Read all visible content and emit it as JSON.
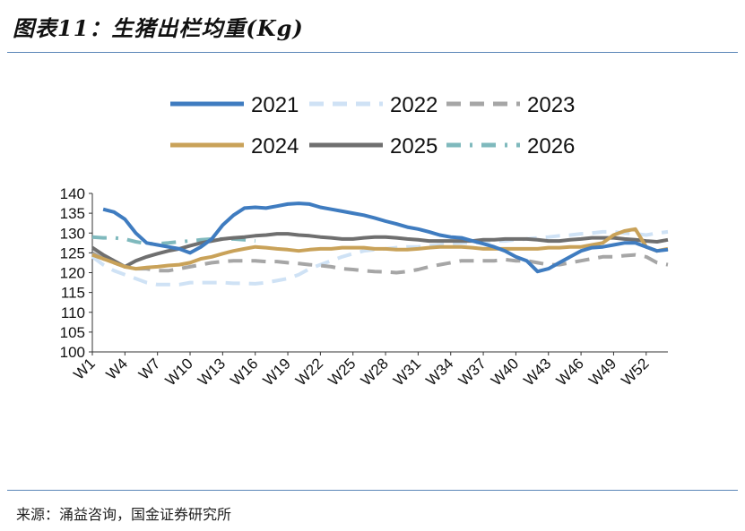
{
  "title": "图表11：生猪出栏均重(Kg)",
  "source": "来源：涌益咨询，国金证券研究所",
  "chart_data": {
    "type": "line",
    "title": "图表11：生猪出栏均重(Kg)",
    "xlabel": "",
    "ylabel": "",
    "ylim": [
      100,
      140
    ],
    "yticks": [
      100,
      105,
      110,
      115,
      120,
      125,
      130,
      135,
      140
    ],
    "legend_position": "top",
    "x_tick_labels": [
      "W1",
      "W4",
      "W7",
      "W10",
      "W13",
      "W16",
      "W19",
      "W22",
      "W25",
      "W28",
      "W31",
      "W34",
      "W37",
      "W40",
      "W43",
      "W46",
      "W49",
      "W52"
    ],
    "x_tick_weeks": [
      1,
      4,
      7,
      10,
      13,
      16,
      19,
      22,
      25,
      28,
      31,
      34,
      37,
      40,
      43,
      46,
      49,
      52
    ],
    "series": [
      {
        "name": "2021",
        "color": "#3f7cc0",
        "style": "solid",
        "x": [
          2,
          3,
          4,
          5,
          6,
          7,
          8,
          9,
          10,
          11,
          12,
          13,
          14,
          15,
          16,
          17,
          18,
          19,
          20,
          21,
          22,
          23,
          24,
          25,
          26,
          27,
          28,
          29,
          30,
          31,
          32,
          33,
          34,
          35,
          36,
          37,
          38,
          39,
          40,
          41,
          42,
          43,
          44,
          45,
          46,
          47,
          48,
          49,
          50,
          51,
          52,
          53,
          54
        ],
        "values": [
          136.0,
          135.3,
          133.5,
          130.0,
          127.5,
          127.0,
          126.5,
          126.0,
          125.0,
          126.5,
          128.5,
          132.0,
          134.5,
          136.3,
          136.5,
          136.3,
          136.8,
          137.3,
          137.5,
          137.3,
          136.5,
          136.0,
          135.5,
          135.0,
          134.5,
          133.8,
          133.0,
          132.3,
          131.5,
          131.0,
          130.3,
          129.5,
          129.0,
          128.8,
          128.0,
          127.3,
          126.5,
          125.5,
          124.0,
          123.0,
          120.3,
          121.0,
          122.5,
          124.0,
          125.5,
          126.3,
          126.5,
          127.0,
          127.5,
          127.5,
          126.5,
          125.5,
          125.8
        ]
      },
      {
        "name": "2022",
        "color": "#cfe2f5",
        "style": "dash",
        "x": [
          1,
          2,
          3,
          4,
          5,
          6,
          7,
          8,
          9,
          10,
          11,
          12,
          13,
          14,
          15,
          16,
          17,
          18,
          19,
          20,
          21,
          22,
          23,
          24,
          25,
          26,
          27,
          28,
          29,
          30,
          31,
          32,
          33,
          34,
          35,
          36,
          37,
          38,
          39,
          40,
          41,
          42,
          43,
          44,
          45,
          46,
          47,
          48,
          49,
          50,
          51,
          52,
          53,
          54
        ],
        "values": [
          124.0,
          122.0,
          120.5,
          119.5,
          118.5,
          117.5,
          117.0,
          117.0,
          117.0,
          117.5,
          117.5,
          117.5,
          117.5,
          117.3,
          117.3,
          117.2,
          117.5,
          118.0,
          118.5,
          119.5,
          121.0,
          122.0,
          123.0,
          124.0,
          124.8,
          125.5,
          125.8,
          126.0,
          126.3,
          126.5,
          126.5,
          126.8,
          127.0,
          127.3,
          127.5,
          127.5,
          127.8,
          128.0,
          128.0,
          128.3,
          128.5,
          128.8,
          129.0,
          129.3,
          129.5,
          129.8,
          130.0,
          130.3,
          130.3,
          130.0,
          129.8,
          129.5,
          130.0,
          130.3
        ]
      },
      {
        "name": "2023",
        "color": "#a6a6a6",
        "style": "dash",
        "x": [
          1,
          2,
          3,
          4,
          5,
          6,
          7,
          8,
          9,
          10,
          11,
          12,
          13,
          14,
          15,
          16,
          17,
          18,
          19,
          20,
          21,
          22,
          23,
          24,
          25,
          26,
          27,
          28,
          29,
          30,
          31,
          32,
          33,
          34,
          35,
          36,
          37,
          38,
          39,
          40,
          41,
          42,
          43,
          44,
          45,
          46,
          47,
          48,
          49,
          50,
          51,
          52,
          53,
          54
        ],
        "values": [
          125.0,
          123.5,
          122.5,
          121.5,
          121.0,
          121.0,
          120.5,
          120.5,
          121.0,
          121.5,
          122.0,
          122.5,
          122.8,
          123.0,
          123.0,
          123.0,
          122.8,
          122.8,
          122.5,
          122.3,
          122.0,
          121.8,
          121.5,
          121.0,
          120.8,
          120.5,
          120.3,
          120.2,
          120.0,
          120.3,
          120.8,
          121.5,
          122.0,
          122.5,
          123.0,
          123.0,
          123.0,
          123.0,
          123.3,
          123.0,
          123.0,
          122.5,
          122.0,
          122.0,
          122.5,
          123.0,
          123.5,
          124.0,
          124.0,
          124.3,
          124.5,
          124.0,
          122.5,
          122.0
        ]
      },
      {
        "name": "2024",
        "color": "#c9a259",
        "style": "solid",
        "x": [
          1,
          2,
          3,
          4,
          5,
          6,
          7,
          8,
          9,
          10,
          11,
          12,
          13,
          14,
          15,
          16,
          17,
          18,
          19,
          20,
          21,
          22,
          23,
          24,
          25,
          26,
          27,
          28,
          29,
          30,
          31,
          32,
          33,
          34,
          35,
          36,
          37,
          38,
          39,
          40,
          41,
          42,
          43,
          44,
          45,
          46,
          47,
          48,
          49,
          50,
          51,
          52,
          53,
          54
        ],
        "values": [
          124.5,
          123.5,
          122.5,
          121.5,
          121.0,
          121.3,
          121.5,
          121.8,
          122.0,
          122.5,
          123.5,
          124.0,
          124.8,
          125.5,
          126.0,
          126.5,
          126.3,
          126.0,
          125.8,
          125.5,
          125.8,
          126.0,
          126.0,
          126.3,
          126.3,
          126.3,
          126.0,
          126.0,
          125.8,
          125.8,
          126.0,
          126.3,
          126.5,
          126.5,
          126.5,
          126.3,
          126.0,
          126.0,
          126.0,
          126.0,
          126.0,
          126.0,
          126.3,
          126.3,
          126.5,
          126.5,
          127.0,
          127.5,
          129.5,
          130.5,
          131.0,
          126.5,
          125.5,
          126.0
        ]
      },
      {
        "name": "2025",
        "color": "#6f6f6f",
        "style": "solid",
        "x": [
          1,
          2,
          3,
          4,
          5,
          6,
          7,
          8,
          9,
          10,
          11,
          12,
          13,
          14,
          15,
          16,
          17,
          18,
          19,
          20,
          21,
          22,
          23,
          24,
          25,
          26,
          27,
          28,
          29,
          30,
          31,
          32,
          33,
          34,
          35,
          36,
          37,
          38,
          39,
          40,
          41,
          42,
          43,
          44,
          45,
          46,
          47,
          48,
          49,
          50,
          51,
          52,
          53,
          54
        ],
        "values": [
          126.3,
          124.5,
          123.0,
          121.5,
          123.0,
          124.0,
          124.8,
          125.5,
          126.0,
          126.8,
          127.5,
          128.0,
          128.5,
          128.8,
          129.0,
          129.3,
          129.5,
          129.8,
          129.8,
          129.5,
          129.3,
          129.0,
          128.8,
          128.5,
          128.5,
          128.8,
          129.0,
          129.0,
          128.8,
          128.5,
          128.3,
          128.0,
          128.0,
          128.0,
          128.0,
          128.0,
          128.3,
          128.3,
          128.5,
          128.5,
          128.5,
          128.3,
          128.0,
          128.0,
          128.3,
          128.5,
          128.8,
          128.8,
          128.8,
          128.5,
          128.3,
          128.0,
          127.8,
          128.3
        ]
      },
      {
        "name": "2026",
        "color": "#7fb9bd",
        "style": "dashdot",
        "x": [
          1,
          2,
          3,
          4,
          5,
          6,
          7,
          8,
          9,
          10,
          11,
          12,
          13,
          14,
          15,
          16
        ],
        "values": [
          129.0,
          128.8,
          128.8,
          128.5,
          127.8,
          127.3,
          127.3,
          127.5,
          127.8,
          128.0,
          128.3,
          128.5,
          128.5,
          128.5,
          128.3,
          128.0
        ]
      }
    ]
  }
}
